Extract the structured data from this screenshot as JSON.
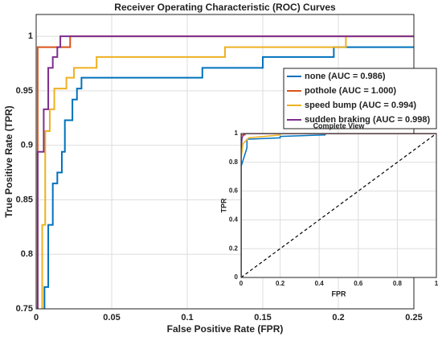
{
  "chart_data": [
    {
      "type": "line",
      "title": "Receiver Operating Characteristic (ROC) Curves",
      "xlabel": "False Positive Rate (FPR)",
      "ylabel": "True Positive Rate (TPR)",
      "xlim": [
        0,
        0.25
      ],
      "ylim": [
        0.75,
        1.02
      ],
      "xticks": [
        0,
        0.05,
        0.1,
        0.15,
        0.2,
        0.25
      ],
      "yticks": [
        0.75,
        0.8,
        0.85,
        0.9,
        0.95,
        1
      ],
      "grid": true,
      "legend": "northeast",
      "series": [
        {
          "name": "none (AUC = 0.986)",
          "color": "#0072BD",
          "x": [
            0.0055,
            0.0055,
            0.008,
            0.008,
            0.011,
            0.011,
            0.014,
            0.014,
            0.017,
            0.017,
            0.019,
            0.019,
            0.024,
            0.024,
            0.027,
            0.027,
            0.03,
            0.03,
            0.11,
            0.11,
            0.15,
            0.15,
            0.197,
            0.197,
            0.25
          ],
          "values": [
            0.75,
            0.77,
            0.77,
            0.827,
            0.827,
            0.865,
            0.865,
            0.875,
            0.875,
            0.894,
            0.894,
            0.923,
            0.923,
            0.942,
            0.942,
            0.952,
            0.952,
            0.962,
            0.962,
            0.971,
            0.971,
            0.981,
            0.981,
            0.99,
            0.99
          ]
        },
        {
          "name": "pothole (AUC = 1.000)",
          "color": "#D95319",
          "x": [
            0.001,
            0.001,
            0.0225,
            0.0225,
            0.25
          ],
          "values": [
            0.75,
            0.99,
            0.99,
            1,
            1
          ]
        },
        {
          "name": "speed bump (AUC = 0.994)",
          "color": "#EDB120",
          "x": [
            0.004,
            0.004,
            0.006,
            0.006,
            0.009,
            0.009,
            0.012,
            0.012,
            0.02,
            0.02,
            0.025,
            0.025,
            0.04,
            0.04,
            0.125,
            0.125,
            0.205,
            0.205,
            0.25
          ],
          "values": [
            0.75,
            0.827,
            0.827,
            0.913,
            0.913,
            0.933,
            0.933,
            0.952,
            0.952,
            0.962,
            0.962,
            0.971,
            0.971,
            0.981,
            0.981,
            0.99,
            0.99,
            1,
            1
          ]
        },
        {
          "name": "sudden braking (AUC = 0.998)",
          "color": "#7E2F8E",
          "x": [
            0.001,
            0.001,
            0.005,
            0.005,
            0.008,
            0.008,
            0.011,
            0.011,
            0.014,
            0.014,
            0.016,
            0.016,
            0.25
          ],
          "values": [
            0.75,
            0.894,
            0.894,
            0.933,
            0.933,
            0.971,
            0.971,
            0.981,
            0.981,
            0.99,
            0.99,
            1,
            1
          ]
        }
      ]
    },
    {
      "type": "line",
      "title": "Complete View",
      "xlabel": "FPR",
      "ylabel": "TPR",
      "xlim": [
        0,
        1
      ],
      "ylim": [
        0,
        1
      ],
      "xticks": [
        0,
        0.2,
        0.4,
        0.6,
        0.8,
        1
      ],
      "yticks": [
        0,
        0.2,
        0.4,
        0.6,
        0.8,
        1
      ],
      "grid": true,
      "series": [
        {
          "color": "#0072BD",
          "x": [
            0,
            0,
            0.03,
            0.03,
            0.2,
            0.2,
            0.43,
            0.43,
            1
          ],
          "values": [
            0,
            0.77,
            0.9,
            0.96,
            0.97,
            0.98,
            0.99,
            1,
            1
          ]
        },
        {
          "color": "#D95319",
          "x": [
            0,
            0,
            0.02,
            0.02,
            1
          ],
          "values": [
            0,
            0.99,
            0.99,
            1,
            1
          ]
        },
        {
          "color": "#EDB120",
          "x": [
            0,
            0,
            0.01,
            0.04,
            0.2,
            0.2,
            1
          ],
          "values": [
            0,
            0.83,
            0.93,
            0.97,
            0.99,
            1,
            1
          ]
        },
        {
          "color": "#7E2F8E",
          "x": [
            0,
            0,
            0.005,
            0.016,
            1
          ],
          "values": [
            0,
            0.89,
            0.97,
            1,
            1
          ]
        }
      ]
    }
  ]
}
